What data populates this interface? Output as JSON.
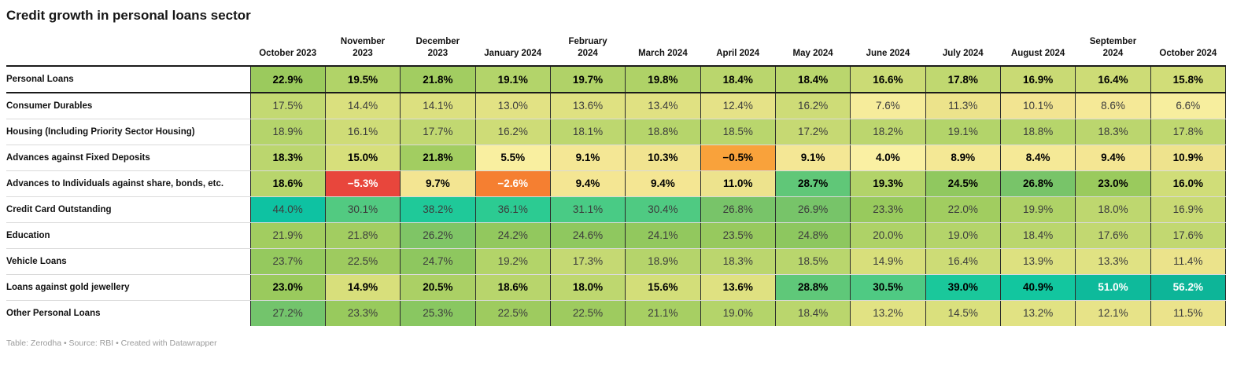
{
  "title": "Credit growth in personal loans sector",
  "footer_text": "Table: Zerodha • Source: RBI • Created with Datawrapper",
  "chart_data": {
    "type": "heatmap",
    "title": "Credit growth in personal loans sector",
    "value_unit": "%",
    "legend": "none",
    "columns": [
      "October 2023",
      "November 2023",
      "December 2023",
      "January 2024",
      "February 2024",
      "March 2024",
      "April 2024",
      "May 2024",
      "June 2024",
      "July 2024",
      "August 2024",
      "September 2024",
      "October 2024"
    ],
    "rows": [
      {
        "label": "Personal Loans",
        "bold": true,
        "values": [
          22.9,
          19.5,
          21.8,
          19.1,
          19.7,
          19.8,
          18.4,
          18.4,
          16.6,
          17.8,
          16.9,
          16.4,
          15.8
        ]
      },
      {
        "label": "Consumer Durables",
        "bold": false,
        "values": [
          17.5,
          14.4,
          14.1,
          13.0,
          13.6,
          13.4,
          12.4,
          16.2,
          7.6,
          11.3,
          10.1,
          8.6,
          6.6
        ]
      },
      {
        "label": "Housing (Including Priority Sector Housing)",
        "bold": false,
        "values": [
          18.9,
          16.1,
          17.7,
          16.2,
          18.1,
          18.8,
          18.5,
          17.2,
          18.2,
          19.1,
          18.8,
          18.3,
          17.8
        ]
      },
      {
        "label": "Advances against Fixed Deposits",
        "bold": true,
        "values": [
          18.3,
          15.0,
          21.8,
          5.5,
          9.1,
          10.3,
          -0.5,
          9.1,
          4.0,
          8.9,
          8.4,
          9.4,
          10.9
        ]
      },
      {
        "label": "Advances to Individuals against share, bonds, etc.",
        "bold": true,
        "values": [
          18.6,
          -5.3,
          9.7,
          -2.6,
          9.4,
          9.4,
          11.0,
          28.7,
          19.3,
          24.5,
          26.8,
          23.0,
          16.0
        ]
      },
      {
        "label": "Credit Card Outstanding",
        "bold": false,
        "values": [
          44.0,
          30.1,
          38.2,
          36.1,
          31.1,
          30.4,
          26.8,
          26.9,
          23.3,
          22.0,
          19.9,
          18.0,
          16.9
        ]
      },
      {
        "label": "Education",
        "bold": false,
        "values": [
          21.9,
          21.8,
          26.2,
          24.2,
          24.6,
          24.1,
          23.5,
          24.8,
          20.0,
          19.0,
          18.4,
          17.6,
          17.6
        ]
      },
      {
        "label": "Vehicle Loans",
        "bold": false,
        "values": [
          23.7,
          22.5,
          24.7,
          19.2,
          17.3,
          18.9,
          18.3,
          18.5,
          14.9,
          16.4,
          13.9,
          13.3,
          11.4
        ]
      },
      {
        "label": "Loans against gold jewellery",
        "bold": true,
        "values": [
          23.0,
          14.9,
          20.5,
          18.6,
          18.0,
          15.6,
          13.6,
          28.8,
          30.5,
          39.0,
          40.9,
          51.0,
          56.2
        ]
      },
      {
        "label": "Other Personal Loans",
        "bold": false,
        "values": [
          27.2,
          23.3,
          25.3,
          22.5,
          22.5,
          21.1,
          19.0,
          18.4,
          13.2,
          14.5,
          13.2,
          12.1,
          11.5
        ]
      }
    ],
    "color_scale": {
      "stops": [
        [
          -5.3,
          "#e8463c"
        ],
        [
          -2.6,
          "#f57f31"
        ],
        [
          -0.5,
          "#f9a23b"
        ],
        [
          4.0,
          "#faf0a3"
        ],
        [
          7.0,
          "#f7ee9d"
        ],
        [
          10.0,
          "#f3e491"
        ],
        [
          13.0,
          "#e2e284"
        ],
        [
          15.0,
          "#d7df7b"
        ],
        [
          17.0,
          "#c8da74"
        ],
        [
          19.0,
          "#b4d46a"
        ],
        [
          21.0,
          "#a8cf63"
        ],
        [
          23.0,
          "#9aca5d"
        ],
        [
          25.0,
          "#8cc75f"
        ],
        [
          27.0,
          "#76c46a"
        ],
        [
          29.0,
          "#5cc87b"
        ],
        [
          31.0,
          "#4acb85"
        ],
        [
          36.0,
          "#2dcb92"
        ],
        [
          40.0,
          "#13c79e"
        ],
        [
          44.0,
          "#0ec2a2"
        ],
        [
          50.0,
          "#0ebb9b"
        ],
        [
          56.2,
          "#0db598"
        ]
      ],
      "white_text_below": -2,
      "white_text_above": 50,
      "regular_text_color": "#3c3c3c",
      "bold_text_color": "#000000"
    }
  }
}
